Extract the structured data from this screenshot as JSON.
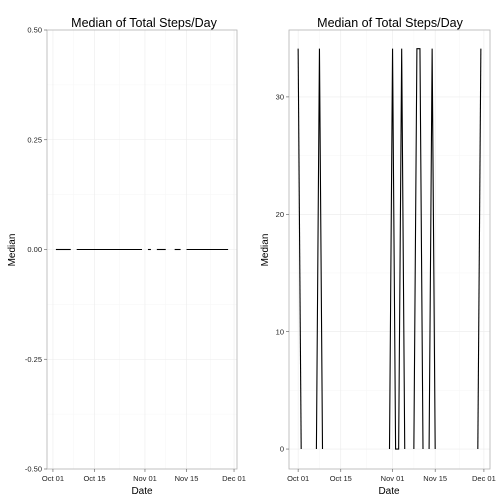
{
  "chart_data": [
    {
      "type": "line",
      "title": "Median of Total Steps/Day",
      "xlabel": "Date",
      "ylabel": "Median",
      "ylim": [
        -0.5,
        0.5
      ],
      "xlim": [
        "2012-09-29",
        "2012-12-02"
      ],
      "yticks": [
        -0.5,
        -0.25,
        0,
        0.25,
        0.5
      ],
      "ytick_labels": [
        "-0.50",
        "-0.25",
        "0.00",
        "0.25",
        "0.50"
      ],
      "xticks": [
        "2012-10-01",
        "2012-10-15",
        "2012-11-01",
        "2012-11-15",
        "2012-12-01"
      ],
      "xtick_labels": [
        "Oct 01",
        "Oct 15",
        "Nov 01",
        "Nov 15",
        "Dec 01"
      ],
      "grid": true,
      "series": [
        {
          "x": [
            "2012-10-02",
            "2012-10-03",
            "2012-10-04",
            "2012-10-05",
            "2012-10-06",
            "2012-10-07",
            "2012-10-09",
            "2012-10-10",
            "2012-10-11",
            "2012-10-12",
            "2012-10-13",
            "2012-10-14",
            "2012-10-15",
            "2012-10-16",
            "2012-10-17",
            "2012-10-18",
            "2012-10-19",
            "2012-10-20",
            "2012-10-21",
            "2012-10-22",
            "2012-10-23",
            "2012-10-24",
            "2012-10-25",
            "2012-10-26",
            "2012-10-27",
            "2012-10-28",
            "2012-10-29",
            "2012-10-30",
            "2012-10-31",
            "2012-11-02",
            "2012-11-03",
            "2012-11-05",
            "2012-11-06",
            "2012-11-07",
            "2012-11-08",
            "2012-11-11",
            "2012-11-12",
            "2012-11-13",
            "2012-11-15",
            "2012-11-16",
            "2012-11-17",
            "2012-11-18",
            "2012-11-19",
            "2012-11-20",
            "2012-11-21",
            "2012-11-22",
            "2012-11-23",
            "2012-11-24",
            "2012-11-25",
            "2012-11-26",
            "2012-11-27",
            "2012-11-28",
            "2012-11-29"
          ],
          "y": [
            0,
            0,
            0,
            0,
            0,
            0,
            0,
            0,
            0,
            0,
            0,
            0,
            0,
            0,
            0,
            0,
            0,
            0,
            0,
            0,
            0,
            0,
            0,
            0,
            0,
            0,
            0,
            0,
            0,
            0,
            0,
            0,
            0,
            0,
            0,
            0,
            0,
            0,
            0,
            0,
            0,
            0,
            0,
            0,
            0,
            0,
            0,
            0,
            0,
            0,
            0,
            0,
            0
          ]
        }
      ]
    },
    {
      "type": "line",
      "title": "Median of Total Steps/Day",
      "xlabel": "Date",
      "ylabel": "Median",
      "ylim": [
        -1.7,
        35.7
      ],
      "xlim": [
        "2012-09-28",
        "2012-12-03"
      ],
      "yticks": [
        0,
        10,
        20,
        30
      ],
      "ytick_labels": [
        "0",
        "10",
        "20",
        "30"
      ],
      "xticks": [
        "2012-10-01",
        "2012-10-15",
        "2012-11-01",
        "2012-11-15",
        "2012-12-01"
      ],
      "xtick_labels": [
        "Oct 01",
        "Oct 15",
        "Nov 01",
        "Nov 15",
        "Dec 01"
      ],
      "grid": true,
      "series": [
        {
          "x": [
            "2012-10-01",
            "2012-10-02",
            "2012-10-07",
            "2012-10-08",
            "2012-10-09",
            "2012-10-31",
            "2012-11-01",
            "2012-11-02",
            "2012-11-03",
            "2012-11-04",
            "2012-11-05",
            "2012-11-08",
            "2012-11-09",
            "2012-11-10",
            "2012-11-11",
            "2012-11-13",
            "2012-11-14",
            "2012-11-15",
            "2012-11-29",
            "2012-11-30"
          ],
          "y": [
            34.11,
            0,
            0,
            34.11,
            0,
            0,
            34.11,
            0,
            0,
            34.11,
            0,
            0,
            34.11,
            34.11,
            0,
            0,
            34.11,
            0,
            0,
            34.11
          ]
        }
      ]
    }
  ]
}
